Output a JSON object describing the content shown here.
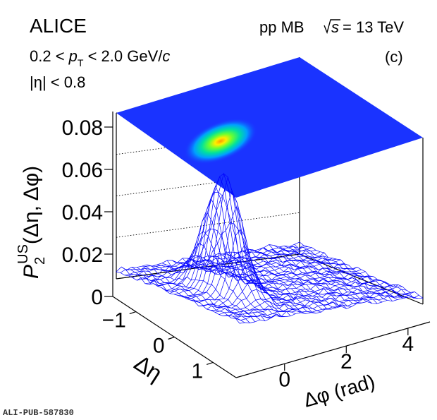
{
  "chart_data": {
    "type": "surface3d",
    "experiment": "ALICE",
    "system": "pp MB",
    "energy": "= 13 TeV",
    "panel": "(c)",
    "cut_pt": "0.2 < pT < 2.0 GeV/c",
    "cut_eta": "|η| < 0.8",
    "zlabel": "P2US(Δη, Δφ)",
    "xlabel": "Δφ (rad)",
    "ylabel": "Δη",
    "xlim": [
      -1.5708,
      4.7124
    ],
    "ylim": [
      -1.6,
      1.6
    ],
    "zlim": [
      0,
      0.085
    ],
    "z_ticks": [
      "0",
      "0.02",
      "0.04",
      "0.06",
      "0.08"
    ],
    "x_ticks": [
      "0",
      "2",
      "4"
    ],
    "y_ticks": [
      "−1",
      "0",
      "1"
    ],
    "peak": {
      "dphi": 0,
      "deta": 0,
      "value": 0.056
    },
    "baseline": 0.0045,
    "footer": "ALI-PUB-587830",
    "colors": {
      "mesh": "#0000ff",
      "map_bg": "#1a33ff"
    }
  }
}
